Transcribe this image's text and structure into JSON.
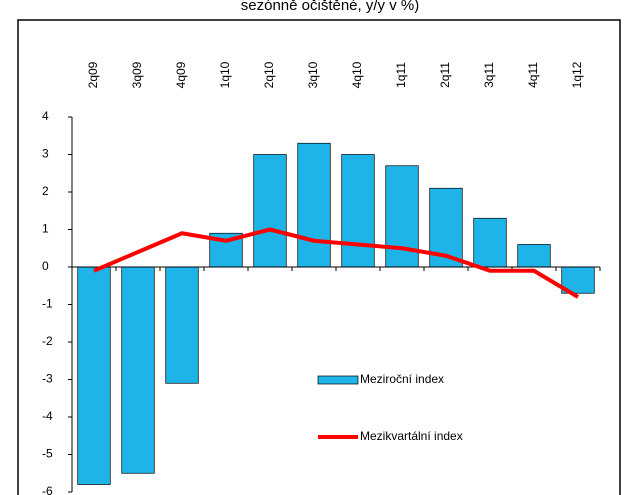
{
  "chart_data": {
    "type": "bar",
    "title": "sezónně očištěné, y/y v %)",
    "categories": [
      "2q09",
      "3q09",
      "4q09",
      "1q10",
      "2q10",
      "3q10",
      "4q10",
      "1q11",
      "2q11",
      "3q11",
      "4q11",
      "1q12"
    ],
    "series": [
      {
        "name": "Meziroční index",
        "type": "bar",
        "color": "#1eb4e8",
        "values": [
          -5.8,
          -5.5,
          -3.1,
          0.9,
          3.0,
          3.3,
          3.0,
          2.7,
          2.1,
          1.3,
          0.6,
          -0.7
        ]
      },
      {
        "name": "Mezikvartální index",
        "type": "line",
        "color": "#ff0000",
        "values": [
          -0.1,
          0.4,
          0.9,
          0.7,
          1.0,
          0.7,
          0.6,
          0.5,
          0.3,
          -0.1,
          -0.1,
          -0.8
        ]
      }
    ],
    "ylim": [
      -6,
      4
    ],
    "yticks": [
      -6,
      -5,
      -4,
      -3,
      -2,
      -1,
      0,
      1,
      2,
      3,
      4
    ],
    "grid": false
  }
}
